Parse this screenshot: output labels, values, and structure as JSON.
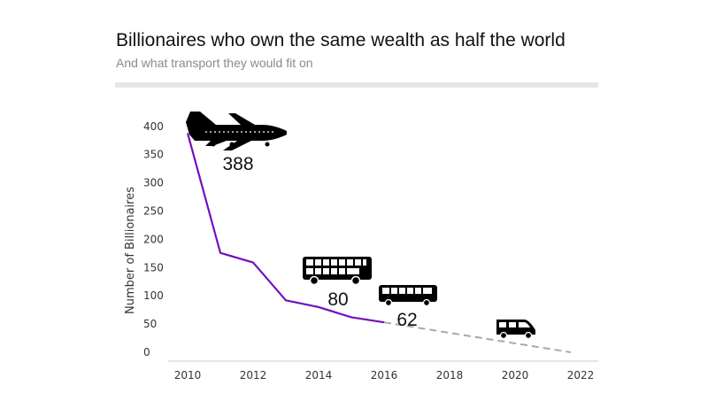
{
  "title": "Billionaires who own the same wealth as half the world",
  "subtitle": "And what transport they would fit on",
  "chart_data": {
    "type": "line",
    "title": "Billionaires who own the same wealth as half the world",
    "subtitle": "And what transport they would fit on",
    "xlabel": "",
    "ylabel": "Number of Billionaires",
    "xlim": [
      2009.2,
      2023
    ],
    "ylim": [
      0,
      400
    ],
    "x_ticks": [
      2010,
      2012,
      2014,
      2016,
      2018,
      2020,
      2022
    ],
    "y_ticks": [
      0,
      50,
      100,
      150,
      200,
      250,
      300,
      350,
      400
    ],
    "grid": false,
    "legend": "none",
    "series": [
      {
        "style": "solid",
        "color": "#7010c0",
        "x": [
          2010,
          2011,
          2012,
          2013,
          2014,
          2015,
          2016
        ],
        "y": [
          388,
          176,
          159,
          92,
          80,
          62,
          53
        ]
      },
      {
        "style": "dashed",
        "color": "#a8a8a8",
        "x": [
          2016,
          2021.7
        ],
        "y": [
          53,
          0
        ]
      }
    ],
    "annotations": [
      {
        "icon": "airplane-icon",
        "label": "388",
        "x": 2011.6,
        "y": 388
      },
      {
        "icon": "double-decker-bus-icon",
        "label": "80",
        "x": 2014.6,
        "y": 80
      },
      {
        "icon": "bus-icon",
        "label": "62",
        "x": 2016.7,
        "y": 62
      },
      {
        "icon": "minibus-icon",
        "label": "",
        "x": 2019.9,
        "y": 0
      }
    ]
  }
}
